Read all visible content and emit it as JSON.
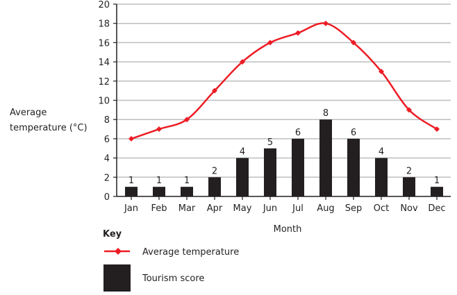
{
  "chart_data": {
    "type": "bar+line",
    "title": "",
    "xlabel": "Month",
    "ylabel": "Average temperature (°C)",
    "ylim": [
      0,
      20
    ],
    "yticks": [
      0,
      2,
      4,
      6,
      8,
      10,
      12,
      14,
      16,
      18,
      20
    ],
    "grid": true,
    "categories": [
      "Jan",
      "Feb",
      "Mar",
      "Apr",
      "May",
      "Jun",
      "Jul",
      "Aug",
      "Sep",
      "Oct",
      "Nov",
      "Dec"
    ],
    "series": [
      {
        "name": "Average temperature",
        "type": "line",
        "color": "#ed1c24",
        "values": [
          6,
          7,
          8,
          11,
          14,
          16,
          17,
          18,
          16,
          13,
          9,
          7
        ]
      },
      {
        "name": "Tourism score",
        "type": "bar",
        "color": "#231f20",
        "values": [
          1,
          1,
          1,
          2,
          4,
          5,
          6,
          8,
          6,
          4,
          2,
          1
        ]
      }
    ],
    "legend": {
      "title": "Key",
      "placement": "bottom-left"
    }
  }
}
